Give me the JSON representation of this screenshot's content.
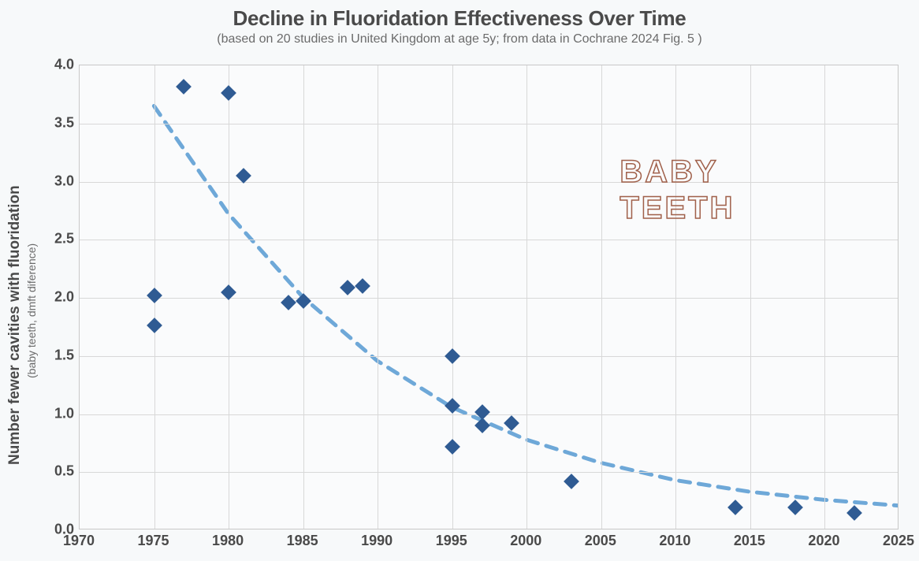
{
  "chart": {
    "type": "scatter",
    "title": "Decline in Fluoridation Effectiveness Over Time",
    "subtitle": "(based on 20 studies in United Kingdom at age 5y; from data in Cochrane 2024 Fig. 5 )",
    "title_fontsize": 26,
    "title_color": "#4a4a4a",
    "subtitle_fontsize": 16,
    "subtitle_color": "#6b6b6b",
    "background_color": "#f7f9fa",
    "plot_background_color": "#fafbfc",
    "plot_border_color": "#c8c8c8",
    "grid_color": "#d8d8d8",
    "xlim": [
      1970,
      2025
    ],
    "ylim": [
      0.0,
      4.0
    ],
    "xtick_step": 5,
    "ytick_step": 0.5,
    "xticks": [
      1970,
      1975,
      1980,
      1985,
      1990,
      1995,
      2000,
      2005,
      2010,
      2015,
      2020,
      2025
    ],
    "yticks": [
      0.0,
      0.5,
      1.0,
      1.5,
      2.0,
      2.5,
      3.0,
      3.5,
      4.0
    ],
    "xtick_labels": [
      "1970",
      "1975",
      "1980",
      "1985",
      "1990",
      "1995",
      "2000",
      "2005",
      "2010",
      "2015",
      "2020",
      "2025"
    ],
    "ytick_labels": [
      "0.0",
      "0.5",
      "1.0",
      "1.5",
      "2.0",
      "2.5",
      "3.0",
      "3.5",
      "4.0"
    ],
    "tick_label_fontsize": 18,
    "tick_label_color": "#4a4a4a",
    "y_axis_label_main": "Number fewer cavities with fluoridation",
    "y_axis_label_sub": "(baby teeth, dmft diference)",
    "y_axis_label_fontsize": 19,
    "y_axis_sublabel_fontsize": 14,
    "marker_style": "diamond",
    "marker_size": 14,
    "marker_color": "#2f5b93",
    "trend_line_color": "#6ea8d8",
    "trend_line_width": 5,
    "trend_line_dash": "14 11",
    "data_points": [
      {
        "x": 1975,
        "y": 2.02
      },
      {
        "x": 1975,
        "y": 1.76
      },
      {
        "x": 1977,
        "y": 3.82
      },
      {
        "x": 1980,
        "y": 3.76
      },
      {
        "x": 1980,
        "y": 2.05
      },
      {
        "x": 1981,
        "y": 3.05
      },
      {
        "x": 1984,
        "y": 1.96
      },
      {
        "x": 1985,
        "y": 1.97
      },
      {
        "x": 1988,
        "y": 2.09
      },
      {
        "x": 1989,
        "y": 2.1
      },
      {
        "x": 1995,
        "y": 1.5
      },
      {
        "x": 1995,
        "y": 1.07
      },
      {
        "x": 1995,
        "y": 0.72
      },
      {
        "x": 1997,
        "y": 1.02
      },
      {
        "x": 1997,
        "y": 0.9
      },
      {
        "x": 1999,
        "y": 0.92
      },
      {
        "x": 2003,
        "y": 0.42
      },
      {
        "x": 2014,
        "y": 0.2
      },
      {
        "x": 2018,
        "y": 0.2
      },
      {
        "x": 2022,
        "y": 0.15
      }
    ],
    "trend_curve_points": [
      {
        "x": 1975,
        "y": 3.65
      },
      {
        "x": 1980,
        "y": 2.72
      },
      {
        "x": 1985,
        "y": 2.0
      },
      {
        "x": 1990,
        "y": 1.45
      },
      {
        "x": 1995,
        "y": 1.05
      },
      {
        "x": 2000,
        "y": 0.77
      },
      {
        "x": 2005,
        "y": 0.57
      },
      {
        "x": 2010,
        "y": 0.42
      },
      {
        "x": 2015,
        "y": 0.32
      },
      {
        "x": 2020,
        "y": 0.25
      },
      {
        "x": 2025,
        "y": 0.2
      }
    ],
    "callout": {
      "text_line1": "BABY",
      "text_line2": "TEETH",
      "position_x": 2010,
      "position_y": 3.1,
      "fontsize": 40,
      "stroke_color": "#a0604a"
    }
  }
}
